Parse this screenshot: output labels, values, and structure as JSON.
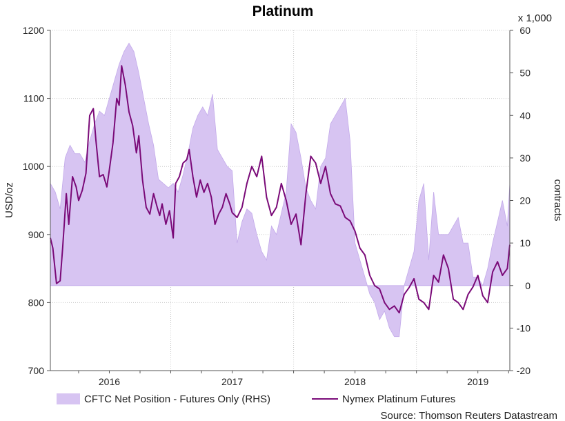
{
  "chart_data": {
    "type": "line",
    "title": "Platinum",
    "ylabel_left": "USD/oz",
    "ylabel_right": "contracts",
    "right_axis_multiplier": "x 1,000",
    "source": "Source: Thomson Reuters Datastream",
    "ylim_left": [
      700,
      1200
    ],
    "yticks_left": [
      "700",
      "800",
      "900",
      "1000",
      "1100",
      "1200"
    ],
    "ylim_right": [
      -20,
      60
    ],
    "yticks_right": [
      "-20",
      "-10",
      "0",
      "10",
      "20",
      "30",
      "40",
      "50",
      "60"
    ],
    "xlim": [
      2015.52,
      2019.26
    ],
    "x_tick_labels": [
      {
        "label": "2016",
        "x": 2016.0
      },
      {
        "label": "2017",
        "x": 2017.0
      },
      {
        "label": "2018",
        "x": 2018.0
      },
      {
        "label": "2019",
        "x": 2019.0
      }
    ],
    "grid": true,
    "legend_placement": "bottom",
    "series": [
      {
        "name": "CFTC Net Position - Futures Only (RHS)",
        "type": "area",
        "axis": "right",
        "color": "#d7c4f2",
        "x": [
          2015.52,
          2015.56,
          2015.6,
          2015.64,
          2015.68,
          2015.72,
          2015.76,
          2015.8,
          2015.84,
          2015.88,
          2015.92,
          2015.96,
          2016.0,
          2016.04,
          2016.08,
          2016.12,
          2016.16,
          2016.2,
          2016.24,
          2016.28,
          2016.32,
          2016.36,
          2016.4,
          2016.44,
          2016.48,
          2016.52,
          2016.56,
          2016.6,
          2016.64,
          2016.68,
          2016.72,
          2016.76,
          2016.8,
          2016.84,
          2016.88,
          2016.92,
          2016.96,
          2017.0,
          2017.04,
          2017.08,
          2017.12,
          2017.16,
          2017.2,
          2017.24,
          2017.28,
          2017.32,
          2017.36,
          2017.4,
          2017.44,
          2017.48,
          2017.52,
          2017.56,
          2017.6,
          2017.64,
          2017.68,
          2017.72,
          2017.76,
          2017.8,
          2017.84,
          2017.88,
          2017.92,
          2017.96,
          2018.0,
          2018.04,
          2018.08,
          2018.12,
          2018.16,
          2018.2,
          2018.24,
          2018.28,
          2018.32,
          2018.36,
          2018.4,
          2018.44,
          2018.48,
          2018.52,
          2018.56,
          2018.6,
          2018.64,
          2018.68,
          2018.72,
          2018.76,
          2018.8,
          2018.84,
          2018.88,
          2018.92,
          2018.96,
          2019.0,
          2019.04,
          2019.08,
          2019.12,
          2019.16,
          2019.2,
          2019.24,
          2019.26
        ],
        "y": [
          24,
          22,
          18,
          30,
          33,
          31,
          31,
          29,
          34,
          38,
          41,
          40,
          44,
          48,
          52,
          55,
          57,
          55,
          50,
          44,
          38,
          33,
          25,
          24,
          23,
          24,
          22,
          26,
          31,
          37,
          40,
          42,
          40,
          45,
          32,
          30,
          28,
          27,
          10,
          15,
          18,
          17,
          12,
          8,
          6,
          14,
          12,
          17,
          22,
          38,
          36,
          30,
          23,
          20,
          18,
          28,
          30,
          38,
          40,
          42,
          44,
          34,
          10,
          6,
          2,
          -2,
          -4,
          -8,
          -6,
          -10,
          -12,
          -12,
          0,
          4,
          8,
          20,
          24,
          6,
          22,
          12,
          12,
          12,
          14,
          16,
          10,
          10,
          2,
          2,
          0,
          4,
          10,
          15,
          20,
          14,
          24
        ]
      },
      {
        "name": "Nymex Platinum Futures",
        "type": "line",
        "axis": "left",
        "color": "#7a0a78",
        "x": [
          2015.52,
          2015.54,
          2015.57,
          2015.6,
          2015.62,
          2015.65,
          2015.67,
          2015.7,
          2015.73,
          2015.75,
          2015.78,
          2015.81,
          2015.84,
          2015.87,
          2015.89,
          2015.92,
          2015.95,
          2015.98,
          2016.0,
          2016.03,
          2016.06,
          2016.08,
          2016.1,
          2016.13,
          2016.16,
          2016.19,
          2016.22,
          2016.24,
          2016.27,
          2016.3,
          2016.33,
          2016.36,
          2016.39,
          2016.41,
          2016.43,
          2016.46,
          2016.49,
          2016.52,
          2016.54,
          2016.57,
          2016.6,
          2016.63,
          2016.65,
          2016.68,
          2016.71,
          2016.74,
          2016.77,
          2016.8,
          2016.83,
          2016.86,
          2016.89,
          2016.92,
          2016.95,
          2016.98,
          2017.0,
          2017.04,
          2017.08,
          2017.12,
          2017.16,
          2017.2,
          2017.24,
          2017.28,
          2017.32,
          2017.36,
          2017.4,
          2017.44,
          2017.48,
          2017.52,
          2017.56,
          2017.6,
          2017.64,
          2017.68,
          2017.72,
          2017.76,
          2017.8,
          2017.84,
          2017.88,
          2017.92,
          2017.96,
          2018.0,
          2018.04,
          2018.08,
          2018.12,
          2018.16,
          2018.2,
          2018.24,
          2018.28,
          2018.32,
          2018.36,
          2018.4,
          2018.44,
          2018.48,
          2018.52,
          2018.56,
          2018.6,
          2018.64,
          2018.68,
          2018.72,
          2018.76,
          2018.8,
          2018.84,
          2018.88,
          2018.92,
          2018.96,
          2019.0,
          2019.04,
          2019.08,
          2019.12,
          2019.16,
          2019.2,
          2019.24,
          2019.26
        ],
        "y": [
          895,
          880,
          828,
          832,
          880,
          960,
          915,
          985,
          970,
          950,
          965,
          990,
          1075,
          1085,
          1040,
          985,
          988,
          970,
          995,
          1035,
          1100,
          1090,
          1148,
          1120,
          1080,
          1060,
          1020,
          1045,
          980,
          940,
          930,
          960,
          940,
          928,
          945,
          915,
          935,
          895,
          975,
          985,
          1005,
          1010,
          1025,
          985,
          955,
          980,
          962,
          975,
          955,
          915,
          930,
          940,
          960,
          945,
          932,
          925,
          940,
          975,
          1000,
          985,
          1015,
          955,
          928,
          940,
          975,
          950,
          915,
          930,
          885,
          960,
          1015,
          1005,
          975,
          1000,
          960,
          945,
          942,
          925,
          920,
          905,
          880,
          870,
          840,
          825,
          820,
          800,
          790,
          795,
          785,
          812,
          822,
          835,
          805,
          800,
          790,
          840,
          830,
          870,
          850,
          805,
          800,
          790,
          812,
          823,
          840,
          810,
          800,
          845,
          860,
          840,
          850,
          885
        ]
      }
    ]
  }
}
